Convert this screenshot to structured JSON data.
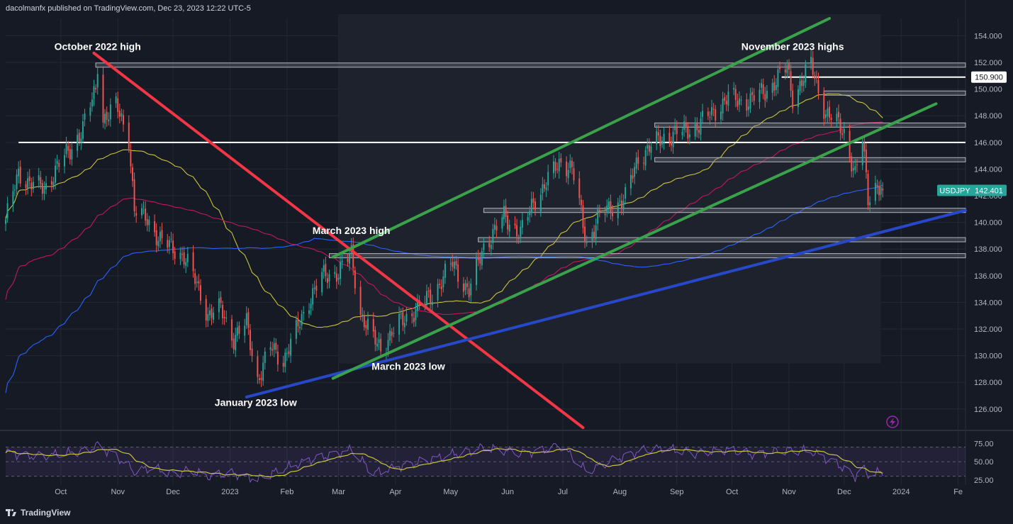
{
  "header": {
    "published_by": "dacolmanfx published on TradingView.com, Dec 23, 2023 12:22 UTC-5"
  },
  "footer": {
    "brand": "TradingView"
  },
  "colors": {
    "background": "#161a25",
    "grid": "#242833",
    "up": "#26a69a",
    "down": "#ef5350",
    "ma50": "#c9c33a",
    "ma100": "#c2185b",
    "ma200": "#2962ff",
    "channel": "#3aa24a",
    "trendline_red": "#f23645",
    "support_blue": "#2648c9",
    "level": "#ffffff",
    "rsi": "#7e57c2",
    "rsi_signal": "#c9c33a",
    "badge_bg": "#26a69a",
    "lightning": "#9c27b0"
  },
  "chart_data": {
    "type": "candlestick",
    "symbol": "USDJPY",
    "last_price": "142.401",
    "price_labels": [
      "154.000",
      "152.000",
      "150.000",
      "148.000",
      "146.000",
      "144.000",
      "142.000",
      "140.000",
      "138.000",
      "136.000",
      "134.000",
      "132.000",
      "130.000",
      "128.000",
      "126.000"
    ],
    "ylim": [
      124.5,
      155.3
    ],
    "x_labels": [
      "Oct",
      "Nov",
      "Dec",
      "2023",
      "Feb",
      "Mar",
      "Apr",
      "May",
      "Jun",
      "Jul",
      "Aug",
      "Sep",
      "Oct",
      "Nov",
      "Dec",
      "2024",
      "Fe"
    ],
    "xlim": [
      "2022-09-01",
      "2024-02-05"
    ],
    "close_series": [
      [
        "2022-09-01",
        140.2
      ],
      [
        "2022-09-08",
        143.6
      ],
      [
        "2022-09-15",
        143.0
      ],
      [
        "2022-09-22",
        142.4
      ],
      [
        "2022-09-29",
        144.3
      ],
      [
        "2022-10-06",
        145.3
      ],
      [
        "2022-10-13",
        147.2
      ],
      [
        "2022-10-20",
        149.9
      ],
      [
        "2022-10-21",
        151.9
      ],
      [
        "2022-10-24",
        147.8
      ],
      [
        "2022-10-31",
        148.7
      ],
      [
        "2022-11-07",
        146.4
      ],
      [
        "2022-11-10",
        140.9
      ],
      [
        "2022-11-17",
        140.2
      ],
      [
        "2022-11-24",
        138.7
      ],
      [
        "2022-11-30",
        138.1
      ],
      [
        "2022-12-07",
        137.5
      ],
      [
        "2022-12-14",
        135.3
      ],
      [
        "2022-12-20",
        133.1
      ],
      [
        "2022-12-27",
        133.5
      ],
      [
        "2023-01-03",
        131.3
      ],
      [
        "2023-01-10",
        132.4
      ],
      [
        "2023-01-16",
        128.2
      ],
      [
        "2023-01-23",
        130.6
      ],
      [
        "2023-01-30",
        129.7
      ],
      [
        "2023-02-06",
        131.8
      ],
      [
        "2023-02-13",
        134.2
      ],
      [
        "2023-02-20",
        135.9
      ],
      [
        "2023-03-01",
        136.3
      ],
      [
        "2023-03-08",
        137.6
      ],
      [
        "2023-03-13",
        133.2
      ],
      [
        "2023-03-20",
        131.2
      ],
      [
        "2023-03-24",
        130.6
      ],
      [
        "2023-04-03",
        132.4
      ],
      [
        "2023-04-13",
        133.6
      ],
      [
        "2023-04-21",
        134.6
      ],
      [
        "2023-05-02",
        136.9
      ],
      [
        "2023-05-11",
        134.8
      ],
      [
        "2023-05-19",
        138.2
      ],
      [
        "2023-05-30",
        140.4
      ],
      [
        "2023-06-08",
        139.2
      ],
      [
        "2023-06-16",
        141.8
      ],
      [
        "2023-06-30",
        144.6
      ],
      [
        "2023-07-06",
        144.1
      ],
      [
        "2023-07-14",
        138.4
      ],
      [
        "2023-07-20",
        140.3
      ],
      [
        "2023-07-28",
        141.2
      ],
      [
        "2023-08-04",
        141.8
      ],
      [
        "2023-08-11",
        144.9
      ],
      [
        "2023-08-18",
        145.7
      ],
      [
        "2023-08-25",
        146.4
      ],
      [
        "2023-09-04",
        146.8
      ],
      [
        "2023-09-12",
        147.2
      ],
      [
        "2023-09-21",
        148.3
      ],
      [
        "2023-09-29",
        149.4
      ],
      [
        "2023-10-04",
        149.1
      ],
      [
        "2023-10-11",
        149.2
      ],
      [
        "2023-10-20",
        149.9
      ],
      [
        "2023-10-31",
        151.6
      ],
      [
        "2023-11-03",
        149.4
      ],
      [
        "2023-11-13",
        151.8
      ],
      [
        "2023-11-21",
        148.2
      ],
      [
        "2023-11-28",
        147.3
      ],
      [
        "2023-12-01",
        146.8
      ],
      [
        "2023-12-07",
        143.5
      ],
      [
        "2023-12-11",
        146.2
      ],
      [
        "2023-12-14",
        141.9
      ],
      [
        "2023-12-18",
        142.8
      ],
      [
        "2023-12-22",
        142.4
      ]
    ],
    "horizontal_levels": [
      {
        "price": 151.8,
        "from": "2022-10-20",
        "to": "2024-02-05",
        "style": "band"
      },
      {
        "price": 150.9,
        "from": "2023-10-28",
        "to": "2024-02-05",
        "style": "line",
        "label": "150.900"
      },
      {
        "price": 149.7,
        "from": "2023-11-20",
        "to": "2024-02-05",
        "style": "band"
      },
      {
        "price": 147.3,
        "from": "2023-08-20",
        "to": "2024-02-05",
        "style": "band"
      },
      {
        "price": 146.0,
        "from": "2022-09-08",
        "to": "2024-02-05",
        "style": "line"
      },
      {
        "price": 144.7,
        "from": "2023-08-20",
        "to": "2024-02-05",
        "style": "band"
      },
      {
        "price": 140.9,
        "from": "2023-05-19",
        "to": "2024-02-05",
        "style": "band"
      },
      {
        "price": 138.7,
        "from": "2023-05-16",
        "to": "2024-02-05",
        "style": "band"
      },
      {
        "price": 137.5,
        "from": "2023-02-24",
        "to": "2024-02-05",
        "style": "band"
      }
    ],
    "trendlines": [
      {
        "name": "downtrend",
        "color": "trendline_red",
        "from": [
          "2022-10-19",
          152.7
        ],
        "to": [
          "2023-07-12",
          124.6
        ]
      },
      {
        "name": "support",
        "color": "support_blue",
        "from": [
          "2023-01-10",
          126.9
        ],
        "to": [
          "2024-02-05",
          140.9
        ]
      },
      {
        "name": "channel-upper",
        "color": "channel",
        "from": [
          "2023-02-26",
          137.4
        ],
        "to": [
          "2023-11-23",
          155.3
        ]
      },
      {
        "name": "channel-lower",
        "color": "channel",
        "from": [
          "2023-02-26",
          128.3
        ],
        "to": [
          "2024-01-20",
          148.9
        ]
      }
    ],
    "annotations": [
      {
        "text": "October 2022 high",
        "date": "2022-10-21",
        "price": 153.2
      },
      {
        "text": "November 2023 highs",
        "date": "2023-11-03",
        "price": 153.2
      },
      {
        "text": "March 2023 high",
        "date": "2023-03-08",
        "price": 139.4
      },
      {
        "text": "March 2023 low",
        "date": "2023-04-08",
        "price": 129.2
      },
      {
        "text": "January 2023 low",
        "date": "2023-01-15",
        "price": 126.5
      }
    ],
    "rsi": {
      "labels": [
        "75.00",
        "50.00",
        "25.00"
      ],
      "ylim": [
        18,
        88
      ],
      "values": [
        [
          "2022-09-01",
          62
        ],
        [
          "2022-09-15",
          58
        ],
        [
          "2022-10-01",
          60
        ],
        [
          "2022-10-15",
          66
        ],
        [
          "2022-10-21",
          72
        ],
        [
          "2022-10-31",
          58
        ],
        [
          "2022-11-10",
          36
        ],
        [
          "2022-11-20",
          42
        ],
        [
          "2022-11-30",
          34
        ],
        [
          "2022-12-10",
          38
        ],
        [
          "2022-12-20",
          30
        ],
        [
          "2023-01-03",
          34
        ],
        [
          "2023-01-16",
          26
        ],
        [
          "2023-01-30",
          40
        ],
        [
          "2023-02-13",
          52
        ],
        [
          "2023-03-01",
          62
        ],
        [
          "2023-03-08",
          66
        ],
        [
          "2023-03-20",
          34
        ],
        [
          "2023-04-03",
          44
        ],
        [
          "2023-04-20",
          52
        ],
        [
          "2023-05-05",
          62
        ],
        [
          "2023-05-20",
          70
        ],
        [
          "2023-06-08",
          60
        ],
        [
          "2023-06-30",
          72
        ],
        [
          "2023-07-14",
          36
        ],
        [
          "2023-07-28",
          52
        ],
        [
          "2023-08-11",
          64
        ],
        [
          "2023-08-25",
          68
        ],
        [
          "2023-09-12",
          62
        ],
        [
          "2023-09-29",
          66
        ],
        [
          "2023-10-11",
          60
        ],
        [
          "2023-10-31",
          66
        ],
        [
          "2023-11-13",
          64
        ],
        [
          "2023-11-28",
          46
        ],
        [
          "2023-12-07",
          30
        ],
        [
          "2023-12-11",
          42
        ],
        [
          "2023-12-14",
          32
        ],
        [
          "2023-12-22",
          36
        ]
      ]
    }
  }
}
